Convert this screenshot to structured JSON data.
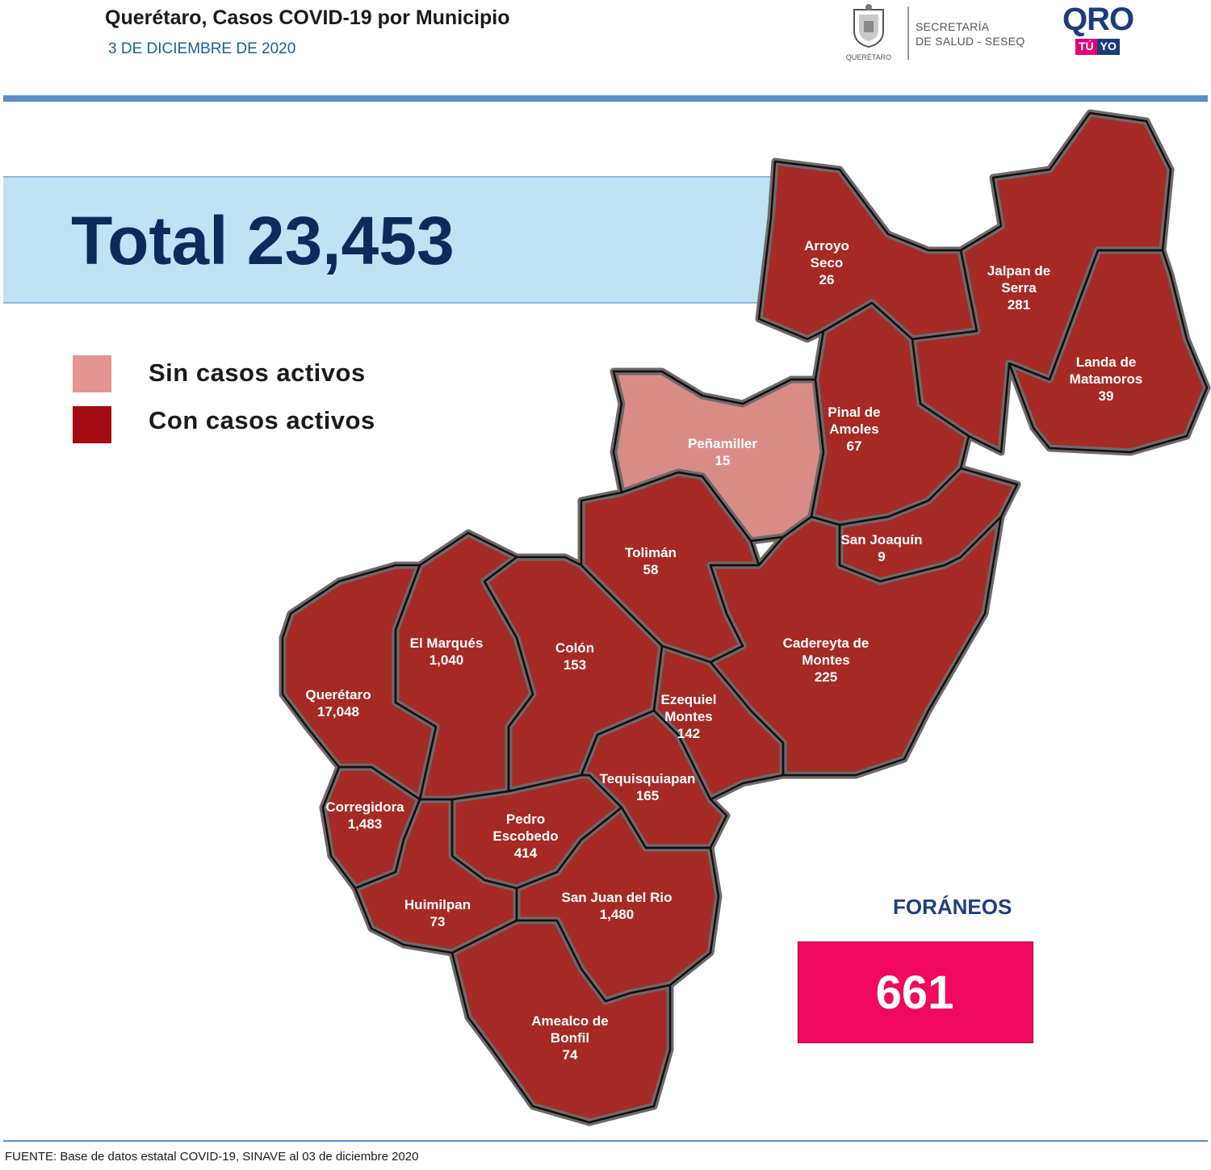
{
  "header": {
    "title": "Querétaro, Casos COVID-19 por Municipio",
    "date": "3 DE DICIEMBRE DE 2020",
    "logos": {
      "state_seal_label": "QUERÉTARO",
      "secretaria_line1": "SECRETARÍA",
      "secretaria_line2": "DE SALUD - SESEQ",
      "qro": "QRO",
      "tu": "TÚ",
      "yo": "YO"
    }
  },
  "total": {
    "label": "Total 23,453"
  },
  "legend": [
    {
      "label": "Sin casos activos",
      "color": "#e39591"
    },
    {
      "label": "Con casos activos",
      "color": "#a30b12"
    }
  ],
  "colors": {
    "active": "#a52a26",
    "inactive": "#d98c86",
    "border": "#6b6b6b"
  },
  "municipalities": [
    {
      "name": [
        "Arroyo",
        "Seco"
      ],
      "cases": "26",
      "status": "active"
    },
    {
      "name": [
        "Jalpan de",
        "Serra"
      ],
      "cases": "281",
      "status": "active"
    },
    {
      "name": [
        "Landa de",
        "Matamoros"
      ],
      "cases": "39",
      "status": "active"
    },
    {
      "name": [
        "Pinal de",
        "Amoles"
      ],
      "cases": "67",
      "status": "active"
    },
    {
      "name": [
        "Peñamiller"
      ],
      "cases": "15",
      "status": "inactive"
    },
    {
      "name": [
        "San Joaquín"
      ],
      "cases": "9",
      "status": "active"
    },
    {
      "name": [
        "Tolimán"
      ],
      "cases": "58",
      "status": "active"
    },
    {
      "name": [
        "Cadereyta de",
        "Montes"
      ],
      "cases": "225",
      "status": "active"
    },
    {
      "name": [
        "El  Marqués"
      ],
      "cases": "1,040",
      "status": "active"
    },
    {
      "name": [
        "Colón"
      ],
      "cases": "153",
      "status": "active"
    },
    {
      "name": [
        "Querétaro"
      ],
      "cases": "17,048",
      "status": "active"
    },
    {
      "name": [
        "Ezequiel",
        "Montes"
      ],
      "cases": "142",
      "status": "active"
    },
    {
      "name": [
        "Tequisquiapan"
      ],
      "cases": "165",
      "status": "active"
    },
    {
      "name": [
        "Corregidora"
      ],
      "cases": "1,483",
      "status": "active"
    },
    {
      "name": [
        "Pedro",
        "Escobedo"
      ],
      "cases": "414",
      "status": "active"
    },
    {
      "name": [
        "Huimilpan"
      ],
      "cases": "73",
      "status": "active"
    },
    {
      "name": [
        "San Juan del Rio"
      ],
      "cases": "1,480",
      "status": "active"
    },
    {
      "name": [
        "Amealco de",
        "Bonfil"
      ],
      "cases": "74",
      "status": "active"
    }
  ],
  "foraneos": {
    "label": "FORÁNEOS",
    "value": "661"
  },
  "source": "FUENTE:  Base de datos estatal COVID-19, SINAVE al 03 de diciembre 2020"
}
